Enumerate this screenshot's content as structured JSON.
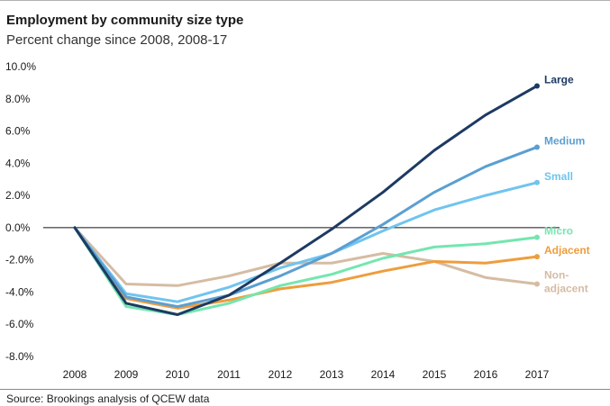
{
  "header": {
    "title": "Employment by community size type",
    "subtitle": "Percent change since 2008, 2008-17"
  },
  "footer": {
    "source": "Source: Brookings analysis of QCEW data"
  },
  "chart_data": {
    "type": "line",
    "title": "Employment by community size type",
    "subtitle": "Percent change since 2008, 2008-17",
    "xlabel": "",
    "ylabel": "",
    "x": [
      "2008",
      "2009",
      "2010",
      "2011",
      "2012",
      "2013",
      "2014",
      "2015",
      "2016",
      "2017"
    ],
    "ylim": [
      -8,
      10
    ],
    "yticks": [
      10,
      8,
      6,
      4,
      2,
      0,
      -2,
      -4,
      -6,
      -8
    ],
    "ytick_labels": [
      "10.0%",
      "8.0%",
      "6.0%",
      "4.0%",
      "2.0%",
      "0.0%",
      "-2.0%",
      "-4.0%",
      "-6.0%",
      "-8.0%"
    ],
    "zero_line": true,
    "grid": false,
    "legend": "inline labels at line ends (right)",
    "series": [
      {
        "name": "Non-",
        "name_line2": "adjacent",
        "color": "#d5bca3",
        "values": [
          0,
          -3.5,
          -3.6,
          -3.0,
          -2.2,
          -2.2,
          -1.6,
          -2.1,
          -3.1,
          -3.5
        ]
      },
      {
        "name": "Adjacent",
        "color": "#ee9d3c",
        "values": [
          0,
          -4.4,
          -5.0,
          -4.5,
          -3.8,
          -3.4,
          -2.7,
          -2.1,
          -2.2,
          -1.8
        ]
      },
      {
        "name": "Micro",
        "color": "#74e6b0",
        "values": [
          0,
          -4.9,
          -5.4,
          -4.7,
          -3.6,
          -2.9,
          -1.9,
          -1.2,
          -1.0,
          -0.6
        ]
      },
      {
        "name": "Small",
        "color": "#70c4ee",
        "values": [
          0,
          -4.1,
          -4.6,
          -3.7,
          -2.5,
          -1.6,
          -0.2,
          1.1,
          2.0,
          2.8
        ]
      },
      {
        "name": "Medium",
        "color": "#5b9fd2",
        "values": [
          0,
          -4.3,
          -4.9,
          -4.2,
          -3.0,
          -1.6,
          0.2,
          2.2,
          3.8,
          5.0
        ]
      },
      {
        "name": "Large",
        "color": "#1d3a63",
        "values": [
          0,
          -4.7,
          -5.4,
          -4.2,
          -2.2,
          -0.1,
          2.2,
          4.8,
          7.0,
          8.8
        ]
      }
    ]
  }
}
